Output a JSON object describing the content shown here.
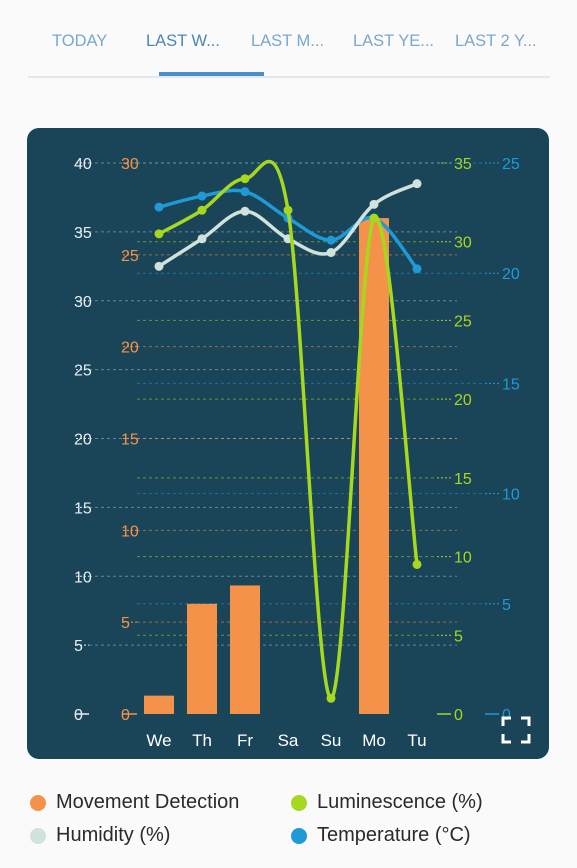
{
  "tabs": [
    {
      "label": "TODAY"
    },
    {
      "label": "LAST W..."
    },
    {
      "label": "LAST M..."
    },
    {
      "label": "LAST YE..."
    },
    {
      "label": "LAST 2 Y..."
    }
  ],
  "active_tab": 1,
  "colors": {
    "panel_bg": "#1a4458",
    "movement": "#f5924a",
    "luminescence": "#a6d81e",
    "humidity": "#cfe2dc",
    "temperature": "#1e9ad6",
    "axis_white": "#e6eef2"
  },
  "chart_data": {
    "type": "bar+line",
    "categories": [
      "We",
      "Th",
      "Fr",
      "Sa",
      "Su",
      "Mo",
      "Tu"
    ],
    "axes": [
      {
        "id": "humidity",
        "side": "left-outer",
        "min": 0,
        "max": 40,
        "ticks": [
          0,
          5,
          10,
          15,
          20,
          25,
          30,
          35,
          40
        ],
        "color": "#e6eef2"
      },
      {
        "id": "movement",
        "side": "left-inner",
        "min": 0,
        "max": 30,
        "ticks": [
          0,
          5,
          10,
          15,
          20,
          25,
          30
        ],
        "color": "#f5924a"
      },
      {
        "id": "luminescence",
        "side": "right-inner",
        "min": 0,
        "max": 35,
        "ticks": [
          0,
          5,
          10,
          15,
          20,
          25,
          30,
          35
        ],
        "color": "#a6d81e"
      },
      {
        "id": "temperature",
        "side": "right-outer",
        "min": 0,
        "max": 25,
        "ticks": [
          0,
          5,
          10,
          15,
          20,
          25
        ],
        "color": "#1e9ad6"
      }
    ],
    "series": [
      {
        "name": "Movement Detection",
        "type": "bar",
        "axis": "movement",
        "color": "#f5924a",
        "values": [
          1,
          6,
          7,
          0,
          0,
          27,
          0
        ]
      },
      {
        "name": "Luminescence (%)",
        "type": "line",
        "axis": "luminescence",
        "color": "#a6d81e",
        "values": [
          30.5,
          32,
          34,
          32,
          1,
          31.5,
          9.5
        ]
      },
      {
        "name": "Humidity (%)",
        "type": "line",
        "axis": "humidity",
        "color": "#cfe2dc",
        "values": [
          32.5,
          34.5,
          36.5,
          34.5,
          33.5,
          37,
          38.5
        ]
      },
      {
        "name": "Temperature (°C)",
        "type": "line",
        "axis": "temperature",
        "color": "#1e9ad6",
        "values": [
          23,
          23.5,
          23.7,
          22.5,
          21.5,
          22.5,
          20.2
        ]
      }
    ],
    "grid": true,
    "legend_position": "bottom"
  },
  "legend": [
    {
      "label": "Movement Detection",
      "color": "#f5924a"
    },
    {
      "label": "Luminescence (%)",
      "color": "#a6d81e"
    },
    {
      "label": "Humidity (%)",
      "color": "#cfe2dc"
    },
    {
      "label": "Temperature (°C)",
      "color": "#1e9ad6"
    }
  ],
  "expand_icon": "expand-icon"
}
